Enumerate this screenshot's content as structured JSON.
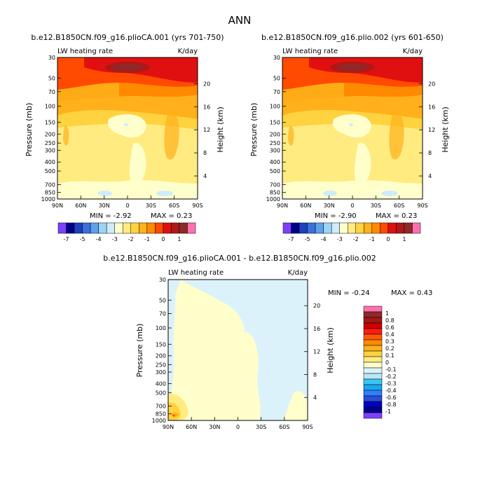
{
  "title": "ANN",
  "colors": {
    "abs": [
      "#7f3fff",
      "#00008b",
      "#1f3fbf",
      "#3a6fdd",
      "#5fa0ee",
      "#9bd3f5",
      "#cfecfa",
      "#ffffcc",
      "#ffeb80",
      "#ffd23f",
      "#ffb01a",
      "#ff8a00",
      "#ff4a00",
      "#e01010",
      "#b01818",
      "#902828",
      "#ff70b0"
    ],
    "diff": [
      "#7f3fff",
      "#00008b",
      "#0000c8",
      "#2a4fd8",
      "#2f7fff",
      "#1aa7ee",
      "#38c6f5",
      "#bbe8f5",
      "#dcf2fb",
      "#ffffcc",
      "#ffeb80",
      "#ffd23f",
      "#ffb01a",
      "#ff8a00",
      "#ff5a00",
      "#ff1a1a",
      "#d00000",
      "#a01818",
      "#902828",
      "#ff70b0"
    ]
  },
  "chart_data": [
    {
      "type": "heatmap",
      "title": "b.e12.B1850CN.f09_g16.plioCA.001 (yrs 701-750)",
      "left_label": "LW heating rate",
      "right_label": "K/day",
      "ylabel": "Pressure (mb)",
      "ylabel_right": "Height (km)",
      "x_ticks": [
        "90N",
        "60N",
        "30N",
        "0",
        "30S",
        "60S",
        "90S"
      ],
      "y_ticks": [
        "30",
        "50",
        "70",
        "100",
        "150",
        "200",
        "250",
        "300",
        "400",
        "500",
        "700",
        "850",
        "1000"
      ],
      "height_ticks": [
        "20",
        "16",
        "12",
        "8",
        "4"
      ],
      "min_label": "MIN = -2.92",
      "max_label": "MAX = 0.23",
      "min": -2.92,
      "max": 0.23,
      "colorbar_labels": [
        "-7",
        "-5",
        "-4",
        "-3",
        "-2",
        "-1",
        "0",
        "1"
      ],
      "ylim": [
        1000,
        30
      ]
    },
    {
      "type": "heatmap",
      "title": "b.e12.B1850CN.f09_g16.plio.002 (yrs 601-650)",
      "left_label": "LW heating rate",
      "right_label": "K/day",
      "ylabel": "Pressure (mb)",
      "ylabel_right": "Height (km)",
      "x_ticks": [
        "90N",
        "60N",
        "30N",
        "0",
        "30S",
        "60S",
        "90S"
      ],
      "y_ticks": [
        "30",
        "50",
        "70",
        "100",
        "150",
        "200",
        "250",
        "300",
        "400",
        "500",
        "700",
        "850",
        "1000"
      ],
      "height_ticks": [
        "20",
        "16",
        "12",
        "8",
        "4"
      ],
      "min_label": "MIN = -2.90",
      "max_label": "MAX = 0.23",
      "min": -2.9,
      "max": 0.23,
      "colorbar_labels": [
        "-7",
        "-5",
        "-4",
        "-3",
        "-2",
        "-1",
        "0",
        "1"
      ],
      "ylim": [
        1000,
        30
      ]
    },
    {
      "type": "heatmap",
      "title": "b.e12.B1850CN.f09_g16.plioCA.001 - b.e12.B1850CN.f09_g16.plio.002",
      "left_label": "LW heating rate",
      "right_label": "K/day",
      "ylabel": "Pressure (mb)",
      "ylabel_right": "Height (km)",
      "x_ticks": [
        "90N",
        "60N",
        "30N",
        "0",
        "30S",
        "60S",
        "90S"
      ],
      "y_ticks": [
        "30",
        "50",
        "70",
        "100",
        "150",
        "200",
        "250",
        "300",
        "400",
        "500",
        "700",
        "850",
        "1000"
      ],
      "height_ticks": [
        "20",
        "16",
        "12",
        "8",
        "4"
      ],
      "min_label": "MIN = -0.24",
      "max_label": "MAX = 0.43",
      "min": -0.24,
      "max": 0.43,
      "colorbar_labels": [
        "1",
        "0.8",
        "0.6",
        "0.4",
        "0.3",
        "0.2",
        "0.1",
        "0",
        "-0.1",
        "-0.2",
        "-0.3",
        "-0.4",
        "-0.6",
        "-0.8",
        "-1"
      ],
      "ylim": [
        1000,
        30
      ]
    }
  ]
}
